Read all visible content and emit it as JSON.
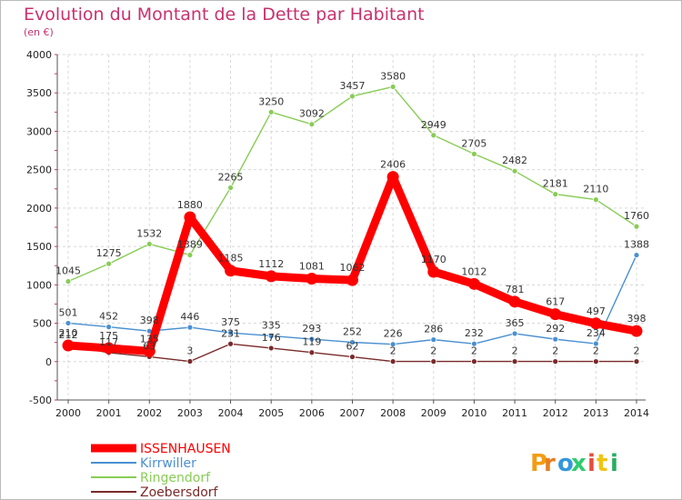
{
  "chart_data": {
    "type": "line",
    "title": "Evolution du Montant de la Dette par Habitant",
    "subtitle": "(en €)",
    "xlabel": "",
    "ylabel": "",
    "x": [
      "2000",
      "2001",
      "2002",
      "2003",
      "2004",
      "2005",
      "2006",
      "2007",
      "2008",
      "2009",
      "2010",
      "2011",
      "2012",
      "2013",
      "2014"
    ],
    "y_ticks": [
      "-500",
      "0",
      "500",
      "1000",
      "1500",
      "2000",
      "2500",
      "3000",
      "3500",
      "4000"
    ],
    "ylim": [
      -500,
      4000
    ],
    "grid": true,
    "legend_position": "bottom-left",
    "series": [
      {
        "name": "ISSENHAUSEN",
        "color": "#ff0000",
        "values": [
          210,
          175,
          135,
          1880,
          1185,
          1112,
          1081,
          1062,
          2406,
          1170,
          1012,
          781,
          617,
          497,
          398
        ],
        "labels": [
          "210",
          "175",
          "135",
          "1880",
          "1185",
          "1112",
          "1081",
          "1062",
          "2406",
          "1170",
          "1012",
          "781",
          "617",
          "497",
          "398"
        ]
      },
      {
        "name": "Kirrwiller",
        "color": "#4a90d0",
        "values": [
          501,
          452,
          398,
          446,
          375,
          335,
          293,
          252,
          226,
          286,
          232,
          365,
          292,
          234,
          1388
        ],
        "labels": [
          "501",
          "452",
          "398",
          "446",
          "375",
          "335",
          "293",
          "252",
          "226",
          "286",
          "232",
          "365",
          "292",
          "234",
          "1388"
        ]
      },
      {
        "name": "Ringendorf",
        "color": "#88cc55",
        "values": [
          1045,
          1275,
          1532,
          1389,
          2265,
          3250,
          3092,
          3457,
          3580,
          2949,
          2705,
          2482,
          2181,
          2110,
          1760
        ],
        "labels": [
          "1045",
          "1275",
          "1532",
          "1389",
          "2265",
          "3250",
          "3092",
          "3457",
          "3580",
          "2949",
          "2705",
          "2482",
          "2181",
          "2110",
          "1760"
        ]
      },
      {
        "name": "Zoebersdorf",
        "color": "#7a2a2a",
        "values": [
          212,
          117,
          63,
          3,
          231,
          176,
          119,
          62,
          2,
          2,
          2,
          2,
          2,
          2,
          2
        ],
        "labels": [
          "212",
          "117",
          "63",
          "3",
          "231",
          "176",
          "119",
          "62",
          "2",
          "2",
          "2",
          "2",
          "2",
          "2",
          "2"
        ]
      }
    ]
  },
  "logo": {
    "letters": [
      "P",
      "r",
      "o",
      "x",
      "i",
      "t",
      "i"
    ],
    "colors": [
      "#f39c12",
      "#e67e22",
      "#3498db",
      "#2ecc71",
      "#e74c3c",
      "#f1c40f",
      "#27ae60"
    ]
  }
}
